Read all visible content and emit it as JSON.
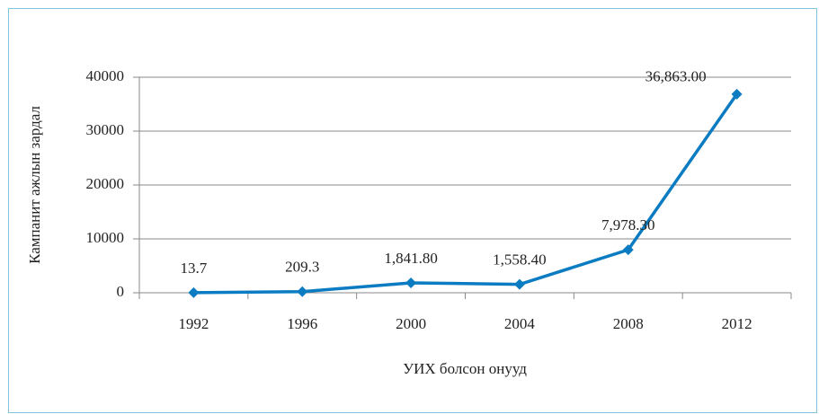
{
  "chart_data": {
    "type": "line",
    "xlabel": "УИХ болсон онууд",
    "ylabel": "Кампанит ажлын зардал",
    "categories": [
      "1992",
      "1996",
      "2000",
      "2004",
      "2008",
      "2012"
    ],
    "series": [
      {
        "name": "Кампанит ажлын зардал",
        "color": "#0b7cc1",
        "values": [
          13.7,
          209.3,
          1841.8,
          1558.4,
          7978.3,
          36863
        ],
        "value_labels": [
          "13.7",
          "209.3",
          "1,841.80",
          "1,558.40",
          "7,978.30",
          "36,863.00"
        ]
      }
    ],
    "ylim": [
      0,
      40000
    ],
    "yticks": [
      0,
      10000,
      20000,
      30000,
      40000
    ],
    "grid": true
  }
}
